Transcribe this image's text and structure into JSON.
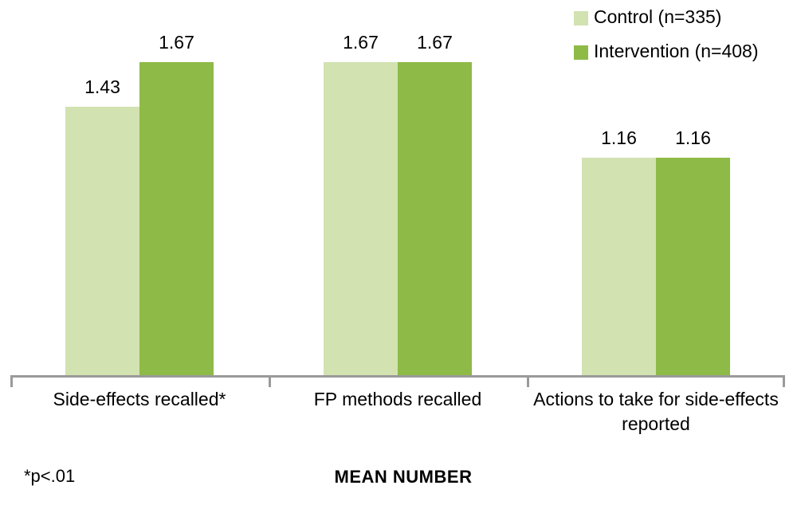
{
  "chart_data": {
    "type": "bar",
    "title": "",
    "categories": [
      "Side-effects recalled*",
      "FP methods recalled",
      "Actions to take for side-effects reported"
    ],
    "series": [
      {
        "name": "Control (n=335)",
        "color": "#d2e2b1",
        "values": [
          1.43,
          1.67,
          1.16
        ]
      },
      {
        "name": "Intervention (n=408)",
        "color": "#8eba47",
        "values": [
          1.67,
          1.67,
          1.16
        ]
      }
    ],
    "xlabel": "MEAN NUMBER",
    "footnote": "*p<.01",
    "ylim": [
      0,
      1.8
    ],
    "grid": false,
    "legend_position": "top-right",
    "axis_color": "#9a9a9a",
    "background": "#ffffff",
    "text_color": "#000000"
  }
}
